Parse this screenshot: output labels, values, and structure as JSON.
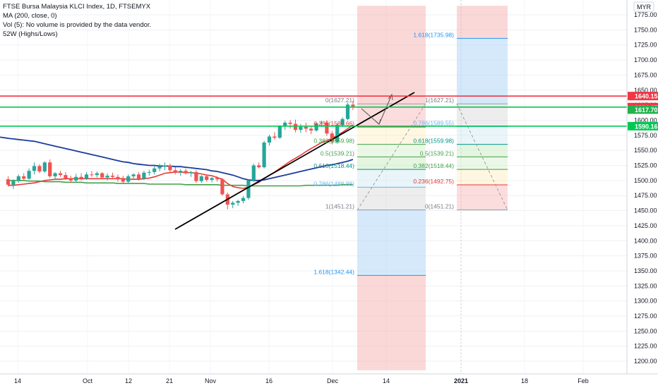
{
  "header": {
    "title": "FTSE Bursa Malaysia KLCI Index, 1D, FTSEMYX",
    "indicators": [
      "MA (200, close, 0)",
      "Vol (5): No volume is provided by the data vendor.",
      "52W (Highs/Lows)"
    ]
  },
  "currency_badge": "MYR",
  "colors": {
    "up": "#26a69a",
    "down": "#ef5350",
    "ma_fast": "#e53935",
    "ma_slow": "#1a3c9c",
    "ma_long": "#43a047",
    "resistance": "#f23645",
    "support": "#00c853",
    "trend": "#000000"
  },
  "price_labels": [
    {
      "text": "1640.15",
      "price": 1640.15,
      "color": "#f23645"
    },
    {
      "text": "1621.85",
      "price": 1621.85,
      "color": "#f23645"
    },
    {
      "text": "1617.70",
      "price": 1617.7,
      "color": "#22b14c"
    },
    {
      "text": "1590.16",
      "price": 1590.16,
      "color": "#00c853"
    }
  ],
  "chart_data": {
    "type": "candlestick",
    "title": "FTSE Bursa Malaysia KLCI Index, 1D, FTSEMYX",
    "currency": "MYR",
    "ylim": [
      1195,
      1790
    ],
    "y_ticks": [
      1775,
      1750,
      1725,
      1700,
      1675,
      1650,
      1625,
      1600,
      1575,
      1550,
      1525,
      1500,
      1475,
      1450,
      1425,
      1400,
      1375,
      1350,
      1325,
      1300,
      1275,
      1250,
      1225,
      1200
    ],
    "x_ticks": [
      "14",
      "Oct",
      "12",
      "21",
      "Nov",
      "16",
      "Dec",
      "14",
      "2021",
      "18",
      "Feb"
    ],
    "horizontal_lines": [
      {
        "price": 1640.15,
        "color": "#f23645"
      },
      {
        "price": 1621.85,
        "color": "#00c853"
      },
      {
        "price": 1590.16,
        "color": "#00c853"
      }
    ],
    "fibonacci_left": [
      {
        "label": "0(1627.21)",
        "price": 1627.21
      },
      {
        "label": "0.236(1588.66)",
        "price": 1588.66
      },
      {
        "label": "0.382(1559.98)",
        "price": 1559.98
      },
      {
        "label": "0.5(1539.21)",
        "price": 1539.21
      },
      {
        "label": "0.618(1518.44)",
        "price": 1518.44
      },
      {
        "label": "0.786(1488.88)",
        "price": 1488.88
      },
      {
        "label": "1(1451.21)",
        "price": 1451.21
      },
      {
        "label": "1.618(1342.44)",
        "price": 1342.44
      }
    ],
    "fibonacci_right": [
      {
        "label": "1.618(1735.98)",
        "price": 1735.98
      },
      {
        "label": "1(1627.21)",
        "price": 1627.21
      },
      {
        "label": "0.786(1589.55)",
        "price": 1589.55
      },
      {
        "label": "0.618(1559.98)",
        "price": 1559.98
      },
      {
        "label": "0.5(1539.21)",
        "price": 1539.21
      },
      {
        "label": "0.382(1518.44)",
        "price": 1518.44
      },
      {
        "label": "0.236(1492.75)",
        "price": 1492.75
      },
      {
        "label": "0(1451.21)",
        "price": 1451.21
      }
    ],
    "candles": [
      [
        1502,
        1507,
        1490,
        1493
      ],
      [
        1493,
        1502,
        1486,
        1499
      ],
      [
        1499,
        1510,
        1496,
        1507
      ],
      [
        1507,
        1512,
        1500,
        1503
      ],
      [
        1503,
        1520,
        1501,
        1516
      ],
      [
        1516,
        1530,
        1510,
        1524
      ],
      [
        1524,
        1527,
        1512,
        1515
      ],
      [
        1515,
        1532,
        1513,
        1530
      ],
      [
        1530,
        1535,
        1504,
        1507
      ],
      [
        1507,
        1514,
        1502,
        1512
      ],
      [
        1512,
        1516,
        1506,
        1509
      ],
      [
        1509,
        1514,
        1501,
        1504
      ],
      [
        1504,
        1508,
        1496,
        1500
      ],
      [
        1500,
        1511,
        1497,
        1506
      ],
      [
        1506,
        1512,
        1500,
        1503
      ],
      [
        1503,
        1514,
        1501,
        1510
      ],
      [
        1510,
        1516,
        1506,
        1509
      ],
      [
        1509,
        1515,
        1505,
        1512
      ],
      [
        1512,
        1514,
        1502,
        1505
      ],
      [
        1505,
        1512,
        1500,
        1508
      ],
      [
        1508,
        1513,
        1503,
        1506
      ],
      [
        1506,
        1510,
        1498,
        1502
      ],
      [
        1502,
        1508,
        1494,
        1498
      ],
      [
        1498,
        1510,
        1496,
        1507
      ],
      [
        1507,
        1512,
        1503,
        1510
      ],
      [
        1510,
        1514,
        1500,
        1503
      ],
      [
        1503,
        1516,
        1501,
        1513
      ],
      [
        1513,
        1518,
        1508,
        1514
      ],
      [
        1514,
        1524,
        1510,
        1520
      ],
      [
        1520,
        1528,
        1515,
        1523
      ],
      [
        1523,
        1530,
        1517,
        1525
      ],
      [
        1525,
        1528,
        1514,
        1517
      ],
      [
        1517,
        1522,
        1510,
        1514
      ],
      [
        1514,
        1519,
        1508,
        1516
      ],
      [
        1516,
        1520,
        1510,
        1512
      ],
      [
        1512,
        1516,
        1506,
        1514
      ],
      [
        1514,
        1517,
        1496,
        1499
      ],
      [
        1499,
        1509,
        1496,
        1507
      ],
      [
        1507,
        1510,
        1498,
        1501
      ],
      [
        1501,
        1506,
        1497,
        1504
      ],
      [
        1504,
        1507,
        1498,
        1502
      ],
      [
        1502,
        1504,
        1475,
        1477
      ],
      [
        1477,
        1480,
        1452,
        1460
      ],
      [
        1460,
        1466,
        1454,
        1463
      ],
      [
        1463,
        1468,
        1458,
        1466
      ],
      [
        1466,
        1474,
        1462,
        1471
      ],
      [
        1471,
        1502,
        1468,
        1500
      ],
      [
        1500,
        1528,
        1498,
        1525
      ],
      [
        1525,
        1530,
        1520,
        1522
      ],
      [
        1522,
        1566,
        1520,
        1563
      ],
      [
        1563,
        1576,
        1558,
        1573
      ],
      [
        1573,
        1580,
        1568,
        1571
      ],
      [
        1571,
        1592,
        1569,
        1590
      ],
      [
        1590,
        1599,
        1584,
        1596
      ],
      [
        1596,
        1600,
        1586,
        1594
      ],
      [
        1594,
        1601,
        1580,
        1584
      ],
      [
        1584,
        1594,
        1579,
        1589
      ],
      [
        1589,
        1596,
        1580,
        1586
      ],
      [
        1586,
        1591,
        1577,
        1583
      ],
      [
        1583,
        1597,
        1581,
        1595
      ],
      [
        1595,
        1599,
        1589,
        1596
      ],
      [
        1596,
        1600,
        1574,
        1578
      ],
      [
        1578,
        1582,
        1560,
        1564
      ],
      [
        1564,
        1595,
        1561,
        1592
      ],
      [
        1592,
        1605,
        1589,
        1602
      ],
      [
        1602,
        1629,
        1600,
        1626
      ],
      [
        1626,
        1632,
        1617,
        1623
      ]
    ],
    "series": [
      {
        "name": "",
        "kind": "fast_ma",
        "values": [
          1492,
          1492,
          1493,
          1494,
          1495,
          1496,
          1498,
          1500,
          1501,
          1502,
          1502,
          1503,
          1503,
          1503,
          1503,
          1503,
          1503,
          1503,
          1503,
          1503,
          1503,
          1503,
          1503,
          1502,
          1502,
          1502,
          1503,
          1504,
          1506,
          1509,
          1512,
          1513,
          1514,
          1514,
          1513,
          1513,
          1512,
          1511,
          1509,
          1508,
          1505,
          1502,
          1495,
          1490,
          1488,
          1487,
          1489,
          1493,
          1497,
          1503,
          1509,
          1514,
          1520,
          1526,
          1532,
          1537,
          1542,
          1548,
          1553,
          1558,
          1563,
          1566,
          1570,
          1575,
          1580,
          1586,
          1592
        ]
      },
      {
        "name": "",
        "kind": "slow_ma",
        "values": [
          1570,
          1569,
          1568,
          1567,
          1566,
          1565,
          1563,
          1561,
          1559,
          1557,
          1555,
          1553,
          1551,
          1549,
          1547,
          1545,
          1543,
          1541,
          1539,
          1537,
          1535,
          1533,
          1531,
          1530,
          1528,
          1527,
          1526,
          1525,
          1525,
          1524,
          1524,
          1524,
          1523,
          1523,
          1522,
          1521,
          1520,
          1519,
          1518,
          1516,
          1515,
          1513,
          1511,
          1509,
          1506,
          1503,
          1501,
          1500,
          1500,
          1501,
          1503,
          1505,
          1507,
          1509,
          1511,
          1513,
          1515,
          1517,
          1519,
          1521,
          1523,
          1525,
          1526,
          1528,
          1530,
          1532,
          1535
        ]
      },
      {
        "name": "",
        "kind": "long_ma",
        "values": [
          1500,
          1500,
          1500,
          1500,
          1499,
          1499,
          1499,
          1498,
          1498,
          1498,
          1498,
          1497,
          1497,
          1497,
          1497,
          1496,
          1496,
          1496,
          1496,
          1496,
          1496,
          1495,
          1495,
          1495,
          1495,
          1495,
          1495,
          1494,
          1494,
          1494,
          1494,
          1494,
          1494,
          1494,
          1493,
          1493,
          1493,
          1493,
          1493,
          1493,
          1493,
          1492,
          1492,
          1492,
          1492,
          1492,
          1491,
          1491,
          1491,
          1491,
          1491,
          1491,
          1491,
          1491,
          1491,
          1491,
          1491,
          1492,
          1492,
          1492,
          1492,
          1492,
          1492,
          1492,
          1493,
          1493,
          1493
        ]
      }
    ]
  }
}
